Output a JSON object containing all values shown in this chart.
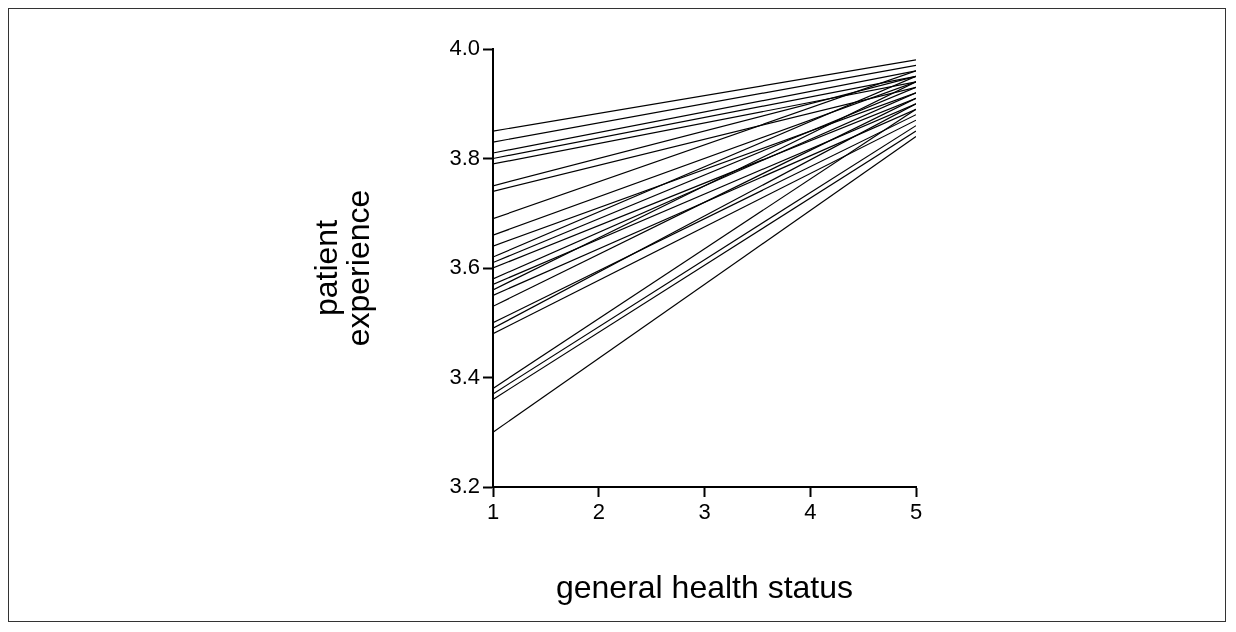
{
  "chart_data": {
    "type": "line",
    "xlabel": "general health status",
    "ylabel": "patient experience",
    "x": [
      1,
      5
    ],
    "xlim": [
      1,
      5
    ],
    "xticks": [
      1,
      2,
      3,
      4,
      5
    ],
    "ylim": [
      3.2,
      4.0
    ],
    "yticks": [
      3.2,
      3.4,
      3.6,
      3.8,
      {
        "value": 4.0,
        "label": "4.0"
      }
    ],
    "grid": false,
    "legend": false,
    "marker": "none",
    "line_style": "solid",
    "series": [
      {
        "color": "#000000",
        "values": [
          3.85,
          3.98
        ]
      },
      {
        "color": "#000000",
        "values": [
          3.83,
          3.97
        ]
      },
      {
        "color": "#000000",
        "values": [
          3.81,
          3.96
        ]
      },
      {
        "color": "#000000",
        "values": [
          3.8,
          3.95
        ]
      },
      {
        "color": "#000000",
        "values": [
          3.79,
          3.94
        ]
      },
      {
        "color": "#000000",
        "values": [
          3.75,
          3.95
        ]
      },
      {
        "color": "#000000",
        "values": [
          3.74,
          3.93
        ]
      },
      {
        "color": "#000000",
        "values": [
          3.69,
          3.96
        ]
      },
      {
        "color": "#000000",
        "values": [
          3.66,
          3.94
        ]
      },
      {
        "color": "#000000",
        "values": [
          3.64,
          3.92
        ]
      },
      {
        "color": "#000000",
        "values": [
          3.62,
          3.95
        ]
      },
      {
        "color": "#000000",
        "values": [
          3.61,
          3.93
        ]
      },
      {
        "color": "#000000",
        "values": [
          3.6,
          3.91
        ]
      },
      {
        "color": "#000000",
        "values": [
          3.58,
          3.92
        ]
      },
      {
        "color": "#000000",
        "values": [
          3.57,
          3.9
        ]
      },
      {
        "color": "#000000",
        "values": [
          3.56,
          3.94
        ]
      },
      {
        "color": "#000000",
        "values": [
          3.55,
          3.89
        ]
      },
      {
        "color": "#000000",
        "values": [
          3.53,
          3.91
        ]
      },
      {
        "color": "#000000",
        "values": [
          3.5,
          3.88
        ]
      },
      {
        "color": "#000000",
        "values": [
          3.49,
          3.9
        ]
      },
      {
        "color": "#000000",
        "values": [
          3.48,
          3.87
        ]
      },
      {
        "color": "#000000",
        "values": [
          3.38,
          3.89
        ]
      },
      {
        "color": "#000000",
        "values": [
          3.37,
          3.86
        ]
      },
      {
        "color": "#000000",
        "values": [
          3.36,
          3.85
        ]
      },
      {
        "color": "#000000",
        "values": [
          3.3,
          3.84
        ]
      }
    ]
  }
}
